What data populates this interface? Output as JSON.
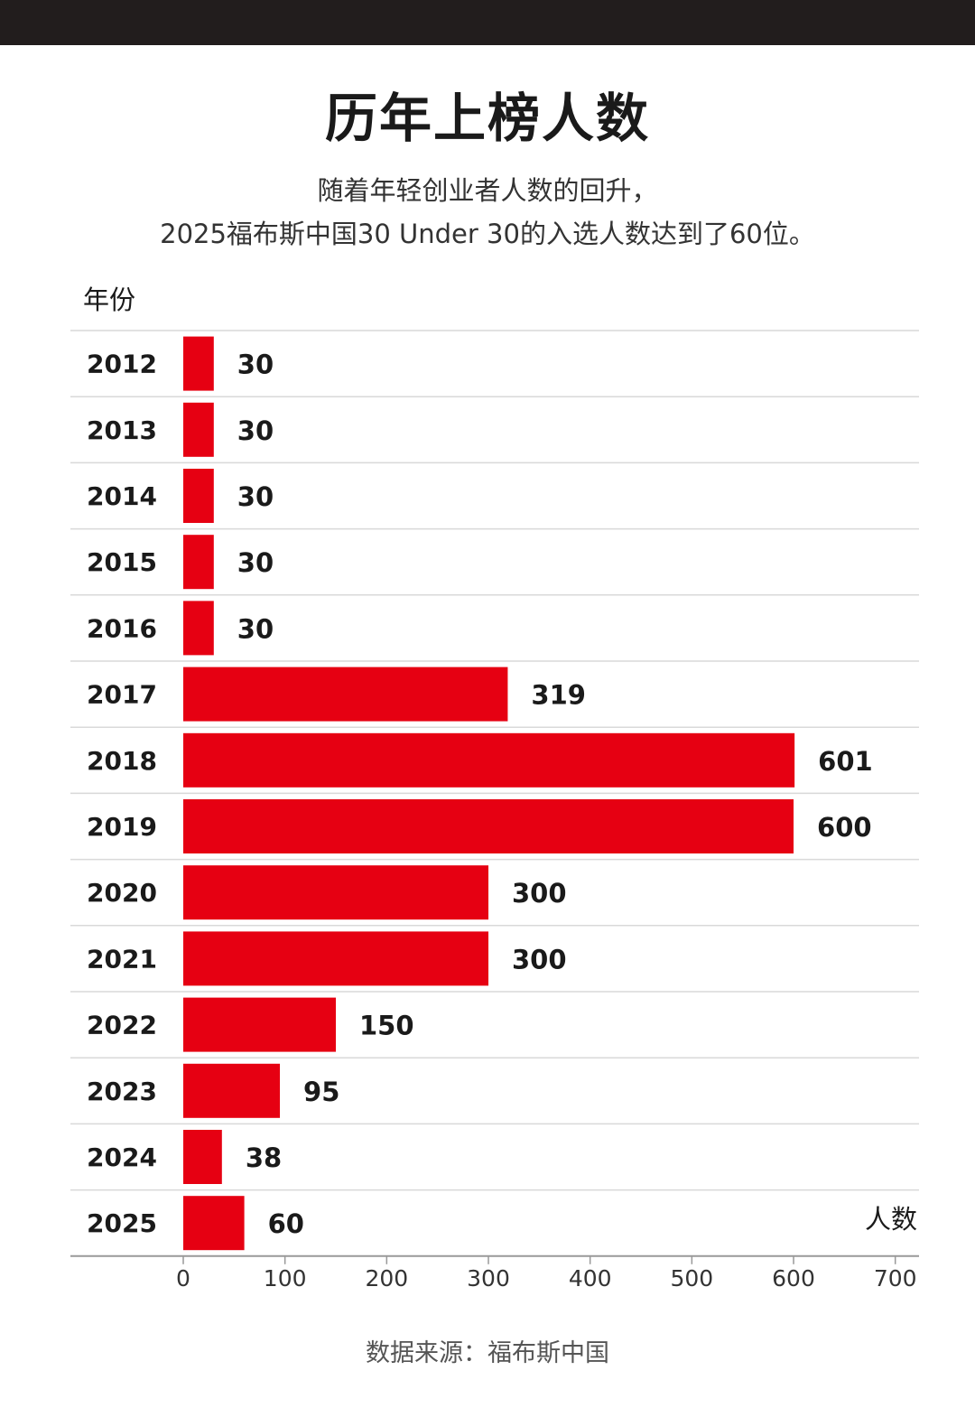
{
  "header": {
    "title": "历年上榜人数",
    "subtitle_line1": "随着年轻创业者人数的回升，",
    "subtitle_line2": "2025福布斯中国30 Under 30的入选人数达到了60位。"
  },
  "footer": {
    "source": "数据来源：福布斯中国"
  },
  "colors": {
    "bar": "#e60012",
    "top_band": "#221d1d",
    "gridline": "#d9d9d9"
  },
  "chart_data": {
    "type": "bar",
    "orientation": "horizontal",
    "title": "历年上榜人数",
    "ylabel": "年份",
    "xlabel": "人数",
    "categories": [
      "2012",
      "2013",
      "2014",
      "2015",
      "2016",
      "2017",
      "2018",
      "2019",
      "2020",
      "2021",
      "2022",
      "2023",
      "2024",
      "2025"
    ],
    "values": [
      30,
      30,
      30,
      30,
      30,
      319,
      601,
      600,
      300,
      300,
      150,
      95,
      38,
      60
    ],
    "value_labels": [
      "30",
      "30",
      "30",
      "30",
      "30",
      "319",
      "601",
      "600",
      "300",
      "300",
      "150",
      "95",
      "38",
      "60"
    ],
    "xlim": [
      0,
      700
    ],
    "xticks": [
      "0",
      "100",
      "200",
      "300",
      "400",
      "500",
      "600",
      "700"
    ],
    "grid": false,
    "legend": "none"
  }
}
